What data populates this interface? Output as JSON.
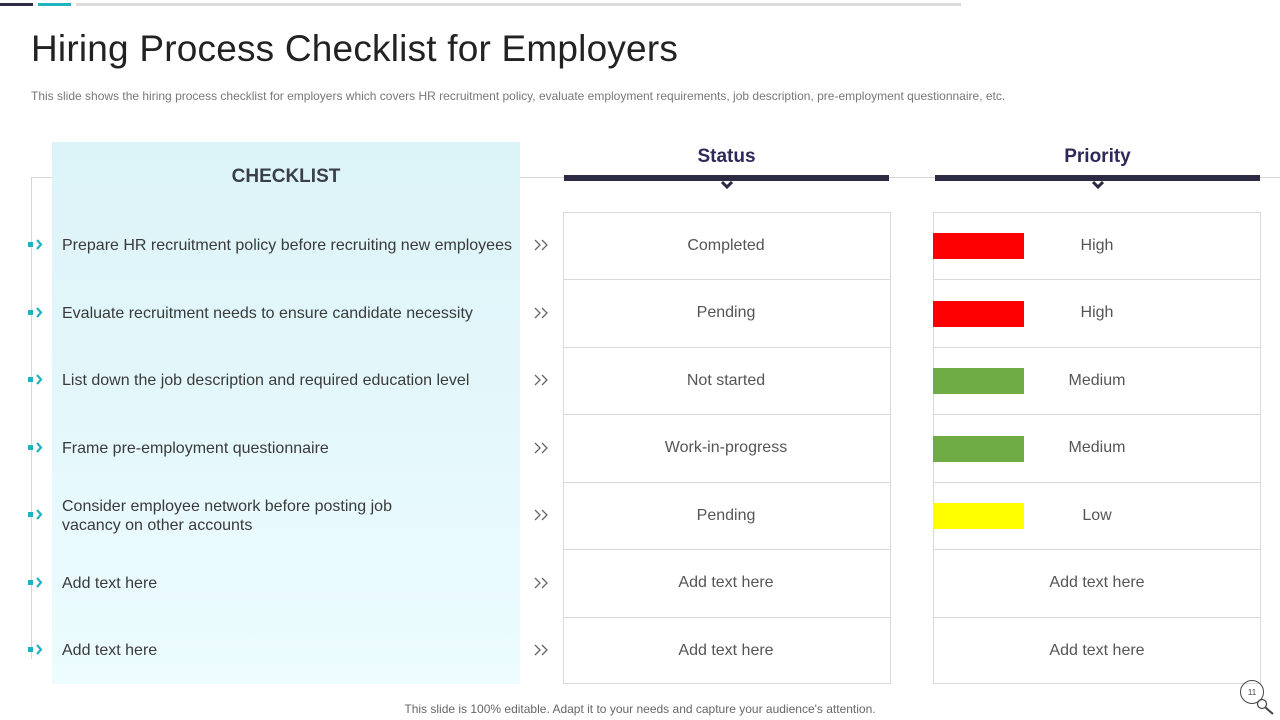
{
  "title": "Hiring Process Checklist for Employers",
  "subtitle": "This slide shows the hiring process checklist for employers which covers HR recruitment policy, evaluate employment requirements, job description, pre-employment questionnaire, etc.",
  "checklist_header": "CHECKLIST",
  "status_header": "Status",
  "priority_header": "Priority",
  "rows": [
    {
      "item": [
        "Prepare HR recruitment policy before recruiting new employees"
      ],
      "status": "Completed",
      "priority": "High",
      "color": "#ff0000"
    },
    {
      "item": [
        "Evaluate recruitment needs to ensure candidate necessity"
      ],
      "status": "Pending",
      "priority": "High",
      "color": "#ff0000"
    },
    {
      "item": [
        "List down the job description and required education level"
      ],
      "status": "Not started",
      "priority": "Medium",
      "color": "#6fac46"
    },
    {
      "item": [
        "Frame pre-employment questionnaire"
      ],
      "status": "Work-in-progress",
      "priority": "Medium",
      "color": "#6fac46"
    },
    {
      "item": [
        "Consider employee network before posting job",
        "vacancy on other accounts"
      ],
      "status": "Pending",
      "priority": "Low",
      "color": "#ffff00"
    },
    {
      "item": [
        "Add text here"
      ],
      "status": "Add text here",
      "priority": "Add text here",
      "color": null
    },
    {
      "item": [
        "Add text here"
      ],
      "status": "Add text here",
      "priority": "Add text here",
      "color": null
    }
  ],
  "footer": "This slide is 100% editable. Adapt it to your needs and capture your audience's attention.",
  "page_number": "11",
  "colors": {
    "accent": "#1fb2c0",
    "dark": "#2d2a43"
  }
}
